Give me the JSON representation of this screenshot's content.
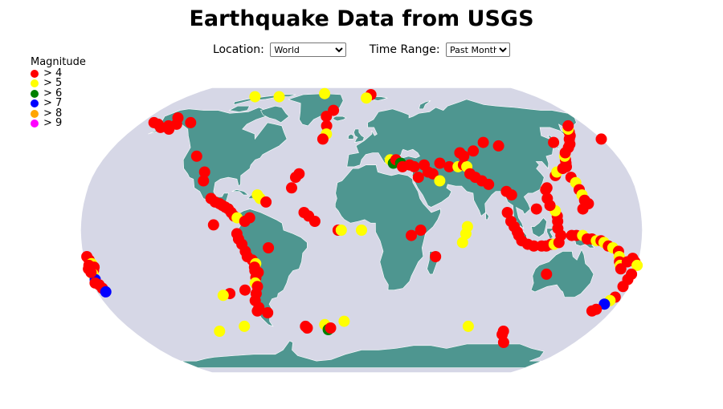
{
  "title": "Earthquake Data from USGS",
  "controls": {
    "location_label": "Location:",
    "location_value": "World",
    "time_label": "Time Range:",
    "time_value": "Past Month"
  },
  "legend": {
    "title": "Magnitude",
    "items": [
      {
        "label": "> 4",
        "color": "#ff0000"
      },
      {
        "label": "> 5",
        "color": "#ffff00"
      },
      {
        "label": "> 6",
        "color": "#008000"
      },
      {
        "label": "> 7",
        "color": "#0000ff"
      },
      {
        "label": "> 8",
        "color": "#ffa500"
      },
      {
        "label": "> 9",
        "color": "#ff00ff"
      }
    ]
  },
  "colors": {
    "ocean": "#d6d7e6",
    "land": "#4e9690",
    "border": "#ffffff"
  },
  "map": {
    "projection": "robinson",
    "earthquakes": [
      {
        "lon": -170,
        "lat": 62,
        "mag": 4.3
      },
      {
        "lon": -165,
        "lat": 61,
        "mag": 4.2
      },
      {
        "lon": -160,
        "lat": 59,
        "mag": 4.5
      },
      {
        "lon": -155,
        "lat": 60,
        "mag": 4.4
      },
      {
        "lon": -150,
        "lat": 61,
        "mag": 4.2
      },
      {
        "lon": -140,
        "lat": 62,
        "mag": 4.6
      },
      {
        "lon": -152,
        "lat": 58,
        "mag": 4.1
      },
      {
        "lon": -155,
        "lat": 65,
        "mag": 4.0
      },
      {
        "lon": -110,
        "lat": 80,
        "mag": 5.1
      },
      {
        "lon": -85,
        "lat": 80,
        "mag": 5.0
      },
      {
        "lon": -40,
        "lat": 83,
        "mag": 5.2
      },
      {
        "lon": 10,
        "lat": 82,
        "mag": 4.3
      },
      {
        "lon": 5,
        "lat": 79,
        "mag": 5.3
      },
      {
        "lon": -25,
        "lat": 70,
        "mag": 4.1
      },
      {
        "lon": -30,
        "lat": 66,
        "mag": 4.2
      },
      {
        "lon": -28,
        "lat": 60,
        "mag": 4.3
      },
      {
        "lon": -27,
        "lat": 55,
        "mag": 5.0
      },
      {
        "lon": -29,
        "lat": 52,
        "mag": 4.4
      },
      {
        "lon": -116,
        "lat": 42,
        "mag": 4.3
      },
      {
        "lon": -106,
        "lat": 33,
        "mag": 4.1
      },
      {
        "lon": -105,
        "lat": 28,
        "mag": 4.0
      },
      {
        "lon": -98,
        "lat": 18,
        "mag": 4.4
      },
      {
        "lon": -95,
        "lat": 16,
        "mag": 4.5
      },
      {
        "lon": -92,
        "lat": 15,
        "mag": 4.6
      },
      {
        "lon": -90,
        "lat": 14,
        "mag": 4.3
      },
      {
        "lon": -88,
        "lat": 13,
        "mag": 4.2
      },
      {
        "lon": -86,
        "lat": 12,
        "mag": 4.5
      },
      {
        "lon": -84,
        "lat": 10,
        "mag": 4.2
      },
      {
        "lon": -82,
        "lat": 8,
        "mag": 4.1
      },
      {
        "lon": -80,
        "lat": 7,
        "mag": 5.0
      },
      {
        "lon": -75,
        "lat": 5,
        "mag": 4.3
      },
      {
        "lon": -72,
        "lat": 7,
        "mag": 4.2
      },
      {
        "lon": -66,
        "lat": 18,
        "mag": 5.1
      },
      {
        "lon": -68,
        "lat": 20,
        "mag": 5.2
      },
      {
        "lon": -62,
        "lat": 16,
        "mag": 4.3
      },
      {
        "lon": -44,
        "lat": 30,
        "mag": 4.4
      },
      {
        "lon": -42,
        "lat": 32,
        "mag": 4.5
      },
      {
        "lon": -46,
        "lat": 24,
        "mag": 4.1
      },
      {
        "lon": -37,
        "lat": 10,
        "mag": 4.3
      },
      {
        "lon": -34,
        "lat": 8,
        "mag": 4.2
      },
      {
        "lon": -30,
        "lat": 5,
        "mag": 4.4
      },
      {
        "lon": -15,
        "lat": 0,
        "mag": 4.5
      },
      {
        "lon": -13,
        "lat": 0,
        "mag": 5.0
      },
      {
        "lon": 0,
        "lat": 0,
        "mag": 5.1
      },
      {
        "lon": -95,
        "lat": 3,
        "mag": 4.3
      },
      {
        "lon": -80,
        "lat": -2,
        "mag": 4.2
      },
      {
        "lon": -79,
        "lat": -5,
        "mag": 4.4
      },
      {
        "lon": -77,
        "lat": -8,
        "mag": 4.3
      },
      {
        "lon": -75,
        "lat": -12,
        "mag": 4.5
      },
      {
        "lon": -74,
        "lat": -15,
        "mag": 4.2
      },
      {
        "lon": -71,
        "lat": -17,
        "mag": 4.6
      },
      {
        "lon": -69,
        "lat": -19,
        "mag": 5.1
      },
      {
        "lon": -70,
        "lat": -21,
        "mag": 4.3
      },
      {
        "lon": -70,
        "lat": -23,
        "mag": 4.5
      },
      {
        "lon": -68,
        "lat": -24,
        "mag": 4.7
      },
      {
        "lon": -70,
        "lat": -27,
        "mag": 4.2
      },
      {
        "lon": -71,
        "lat": -30,
        "mag": 5.2
      },
      {
        "lon": -70,
        "lat": -32,
        "mag": 4.3
      },
      {
        "lon": -72,
        "lat": -36,
        "mag": 4.4
      },
      {
        "lon": -74,
        "lat": -40,
        "mag": 4.1
      },
      {
        "lon": -73,
        "lat": -44,
        "mag": 4.2
      },
      {
        "lon": -75,
        "lat": -46,
        "mag": 4.3
      },
      {
        "lon": -68,
        "lat": -47,
        "mag": 4.4
      },
      {
        "lon": -79,
        "lat": -34,
        "mag": 4.2
      },
      {
        "lon": -90,
        "lat": -36,
        "mag": 4.5
      },
      {
        "lon": -95,
        "lat": -37,
        "mag": 5.0
      },
      {
        "lon": -60,
        "lat": -10,
        "mag": 4.3
      },
      {
        "lon": -112,
        "lat": -58,
        "mag": 5.1
      },
      {
        "lon": -90,
        "lat": -55,
        "mag": 5.0
      },
      {
        "lon": -43,
        "lat": -55,
        "mag": 4.3
      },
      {
        "lon": -42,
        "lat": -56,
        "mag": 4.2
      },
      {
        "lon": -28,
        "lat": -54,
        "mag": 5.3
      },
      {
        "lon": -26,
        "lat": -57,
        "mag": 6.1
      },
      {
        "lon": -24,
        "lat": -56,
        "mag": 4.4
      },
      {
        "lon": -13,
        "lat": -52,
        "mag": 5.2
      },
      {
        "lon": 20,
        "lat": 40,
        "mag": 5.1
      },
      {
        "lon": 22,
        "lat": 38,
        "mag": 6.2
      },
      {
        "lon": 24,
        "lat": 40,
        "mag": 4.3
      },
      {
        "lon": 27,
        "lat": 38,
        "mag": 6.1
      },
      {
        "lon": 28,
        "lat": 36,
        "mag": 4.4
      },
      {
        "lon": 33,
        "lat": 37,
        "mag": 4.2
      },
      {
        "lon": 36,
        "lat": 36,
        "mag": 4.5
      },
      {
        "lon": 43,
        "lat": 37,
        "mag": 4.1
      },
      {
        "lon": 38,
        "lat": 30,
        "mag": 4.3
      },
      {
        "lon": 45,
        "lat": 33,
        "mag": 4.2
      },
      {
        "lon": 48,
        "lat": 32,
        "mag": 4.4
      },
      {
        "lon": 52,
        "lat": 28,
        "mag": 5.0
      },
      {
        "lon": 54,
        "lat": 38,
        "mag": 4.3
      },
      {
        "lon": 60,
        "lat": 36,
        "mag": 4.2
      },
      {
        "lon": 66,
        "lat": 36,
        "mag": 5.1
      },
      {
        "lon": 70,
        "lat": 37,
        "mag": 4.5
      },
      {
        "lon": 72,
        "lat": 36,
        "mag": 5.2
      },
      {
        "lon": 73,
        "lat": 32,
        "mag": 4.6
      },
      {
        "lon": 76,
        "lat": 30,
        "mag": 4.2
      },
      {
        "lon": 80,
        "lat": 28,
        "mag": 4.4
      },
      {
        "lon": 84,
        "lat": 26,
        "mag": 4.3
      },
      {
        "lon": 70,
        "lat": 44,
        "mag": 4.2
      },
      {
        "lon": 72,
        "lat": 42,
        "mag": 4.5
      },
      {
        "lon": 80,
        "lat": 45,
        "mag": 4.1
      },
      {
        "lon": 90,
        "lat": 50,
        "mag": 4.3
      },
      {
        "lon": 100,
        "lat": 48,
        "mag": 4.2
      },
      {
        "lon": 38,
        "lat": 0,
        "mag": 4.5
      },
      {
        "lon": 32,
        "lat": -3,
        "mag": 4.3
      },
      {
        "lon": 48,
        "lat": -15,
        "mag": 4.2
      },
      {
        "lon": 68,
        "lat": 2,
        "mag": 5.1
      },
      {
        "lon": 67,
        "lat": -2,
        "mag": 5.2
      },
      {
        "lon": 65,
        "lat": -7,
        "mag": 5.0
      },
      {
        "lon": 82,
        "lat": -55,
        "mag": 5.1
      },
      {
        "lon": 112,
        "lat": -58,
        "mag": 4.3
      },
      {
        "lon": 113,
        "lat": -60,
        "mag": 4.2
      },
      {
        "lon": 120,
        "lat": -65,
        "mag": 4.4
      },
      {
        "lon": 95,
        "lat": 22,
        "mag": 4.4
      },
      {
        "lon": 98,
        "lat": 20,
        "mag": 4.3
      },
      {
        "lon": 94,
        "lat": 10,
        "mag": 4.3
      },
      {
        "lon": 96,
        "lat": 5,
        "mag": 4.2
      },
      {
        "lon": 98,
        "lat": 2,
        "mag": 4.5
      },
      {
        "lon": 100,
        "lat": -1,
        "mag": 4.3
      },
      {
        "lon": 101,
        "lat": -3,
        "mag": 4.1
      },
      {
        "lon": 103,
        "lat": -6,
        "mag": 4.2
      },
      {
        "lon": 107,
        "lat": -8,
        "mag": 4.3
      },
      {
        "lon": 111,
        "lat": -9,
        "mag": 4.5
      },
      {
        "lon": 116,
        "lat": -9,
        "mag": 4.4
      },
      {
        "lon": 119,
        "lat": -9,
        "mag": 4.2
      },
      {
        "lon": 122,
        "lat": -8,
        "mag": 4.6
      },
      {
        "lon": 124,
        "lat": -8,
        "mag": 5.0
      },
      {
        "lon": 127,
        "lat": -7,
        "mag": 4.3
      },
      {
        "lon": 128,
        "lat": -3,
        "mag": 4.2
      },
      {
        "lon": 126,
        "lat": 1,
        "mag": 4.5
      },
      {
        "lon": 126,
        "lat": 5,
        "mag": 4.4
      },
      {
        "lon": 126,
        "lat": 8,
        "mag": 4.3
      },
      {
        "lon": 125,
        "lat": 11,
        "mag": 5.1
      },
      {
        "lon": 122,
        "lat": 14,
        "mag": 4.2
      },
      {
        "lon": 121,
        "lat": 18,
        "mag": 4.6
      },
      {
        "lon": 121,
        "lat": 23,
        "mag": 4.3
      },
      {
        "lon": 122,
        "lat": 24,
        "mag": 4.4
      },
      {
        "lon": 113,
        "lat": 12,
        "mag": 4.2
      },
      {
        "lon": 130,
        "lat": 31,
        "mag": 4.5
      },
      {
        "lon": 132,
        "lat": 33,
        "mag": 5.1
      },
      {
        "lon": 137,
        "lat": 35,
        "mag": 4.6
      },
      {
        "lon": 140,
        "lat": 36,
        "mag": 4.5
      },
      {
        "lon": 141,
        "lat": 38,
        "mag": 4.7
      },
      {
        "lon": 142,
        "lat": 40,
        "mag": 4.4
      },
      {
        "lon": 143,
        "lat": 42,
        "mag": 5.0
      },
      {
        "lon": 145,
        "lat": 44,
        "mag": 4.3
      },
      {
        "lon": 150,
        "lat": 47,
        "mag": 4.4
      },
      {
        "lon": 153,
        "lat": 49,
        "mag": 4.5
      },
      {
        "lon": 156,
        "lat": 52,
        "mag": 4.2
      },
      {
        "lon": 159,
        "lat": 54,
        "mag": 4.6
      },
      {
        "lon": 161,
        "lat": 56,
        "mag": 4.3
      },
      {
        "lon": 163,
        "lat": 58,
        "mag": 5.1
      },
      {
        "lon": 166,
        "lat": 60,
        "mag": 4.4
      },
      {
        "lon": 142,
        "lat": 50,
        "mag": 4.2
      },
      {
        "lon": 140,
        "lat": 30,
        "mag": 4.3
      },
      {
        "lon": 142,
        "lat": 27,
        "mag": 5.2
      },
      {
        "lon": 143,
        "lat": 23,
        "mag": 4.4
      },
      {
        "lon": 144,
        "lat": 20,
        "mag": 5.0
      },
      {
        "lon": 145,
        "lat": 17,
        "mag": 4.3
      },
      {
        "lon": 147,
        "lat": 15,
        "mag": 4.5
      },
      {
        "lon": 143,
        "lat": 12,
        "mag": 4.2
      },
      {
        "lon": 180,
        "lat": 52,
        "mag": 4.5
      },
      {
        "lon": 135,
        "lat": -3,
        "mag": 4.4
      },
      {
        "lon": 138,
        "lat": -3,
        "mag": 4.3
      },
      {
        "lon": 142,
        "lat": -3,
        "mag": 5.1
      },
      {
        "lon": 145,
        "lat": -5,
        "mag": 4.6
      },
      {
        "lon": 148,
        "lat": -5,
        "mag": 4.4
      },
      {
        "lon": 151,
        "lat": -6,
        "mag": 5.2
      },
      {
        "lon": 154,
        "lat": -6,
        "mag": 4.3
      },
      {
        "lon": 156,
        "lat": -7,
        "mag": 5.0
      },
      {
        "lon": 159,
        "lat": -9,
        "mag": 4.5
      },
      {
        "lon": 162,
        "lat": -10,
        "mag": 5.1
      },
      {
        "lon": 166,
        "lat": -12,
        "mag": 4.4
      },
      {
        "lon": 167,
        "lat": -15,
        "mag": 5.2
      },
      {
        "lon": 168,
        "lat": -18,
        "mag": 4.3
      },
      {
        "lon": 169,
        "lat": -20,
        "mag": 5.0
      },
      {
        "lon": 170,
        "lat": -22,
        "mag": 4.6
      },
      {
        "lon": 173,
        "lat": -18,
        "mag": 4.2
      },
      {
        "lon": 176,
        "lat": -16,
        "mag": 4.4
      },
      {
        "lon": 178,
        "lat": -18,
        "mag": 4.3
      },
      {
        "lon": 180,
        "lat": -20,
        "mag": 5.0
      },
      {
        "lon": 177,
        "lat": -28,
        "mag": 4.5
      },
      {
        "lon": 176,
        "lat": -32,
        "mag": 4.2
      },
      {
        "lon": 175,
        "lat": -38,
        "mag": 4.3
      },
      {
        "lon": 173,
        "lat": -40,
        "mag": 5.1
      },
      {
        "lon": 171,
        "lat": -42,
        "mag": 7.1
      },
      {
        "lon": 168,
        "lat": -45,
        "mag": 4.4
      },
      {
        "lon": 166,
        "lat": -46,
        "mag": 4.2
      },
      {
        "lon": 178,
        "lat": -25,
        "mag": 4.3
      },
      {
        "lon": 122,
        "lat": -25,
        "mag": 4.2
      },
      {
        "lon": -178,
        "lat": -15,
        "mag": 4.3
      },
      {
        "lon": -177,
        "lat": -17,
        "mag": 4.5
      },
      {
        "lon": -176,
        "lat": -19,
        "mag": 5.1
      },
      {
        "lon": -175,
        "lat": -21,
        "mag": 4.4
      },
      {
        "lon": -176,
        "lat": -23,
        "mag": 4.2
      },
      {
        "lon": -177,
        "lat": -25,
        "mag": 5.0
      },
      {
        "lon": -177,
        "lat": -28,
        "mag": 7.2
      },
      {
        "lon": -178,
        "lat": -30,
        "mag": 4.6
      },
      {
        "lon": -176,
        "lat": -31,
        "mag": 4.3
      },
      {
        "lon": -175,
        "lat": -33,
        "mag": 4.5
      },
      {
        "lon": -174,
        "lat": -35,
        "mag": 7.1
      },
      {
        "lon": -178,
        "lat": -20,
        "mag": 4.2
      },
      {
        "lon": -179,
        "lat": -22,
        "mag": 4.3
      },
      {
        "lon": -178,
        "lat": -24,
        "mag": 4.4
      }
    ]
  }
}
